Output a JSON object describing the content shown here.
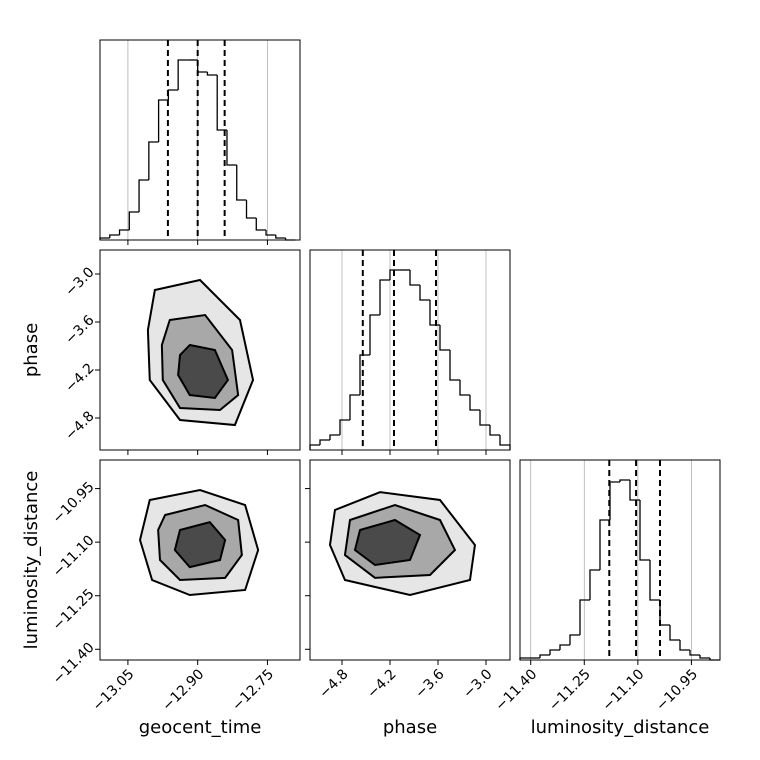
{
  "chart_data": {
    "type": "corner",
    "parameters": [
      {
        "name": "geocent_time",
        "lim": [
          -13.11,
          -12.68
        ],
        "ticks": [
          {
            "value": -13.05,
            "label": "−13.05"
          },
          {
            "value": -12.9,
            "label": "−12.90"
          },
          {
            "value": -12.75,
            "label": "−12.75"
          }
        ],
        "hist": {
          "bins": [
            -13.11,
            -13.089,
            -13.068,
            -13.047,
            -13.026,
            -13.005,
            -12.984,
            -12.963,
            -12.942,
            -12.921,
            -12.9,
            -12.879,
            -12.858,
            -12.837,
            -12.816,
            -12.795,
            -12.774,
            -12.753,
            -12.732,
            -12.711,
            -12.69
          ],
          "values": [
            2,
            5,
            10,
            28,
            60,
            98,
            140,
            150,
            180,
            180,
            168,
            165,
            110,
            75,
            40,
            22,
            10,
            5,
            2,
            0
          ],
          "ylim": [
            0,
            200
          ],
          "quantiles": [
            -12.964,
            -12.9,
            -12.842
          ]
        }
      },
      {
        "name": "phase",
        "lim": [
          -5.2,
          -2.7
        ],
        "ticks": [
          {
            "value": -4.8,
            "label": "−4.8"
          },
          {
            "value": -4.2,
            "label": "−4.2"
          },
          {
            "value": -3.6,
            "label": "−3.6"
          },
          {
            "value": -3.0,
            "label": "−3.0"
          }
        ],
        "hist": {
          "bins": [
            -5.2,
            -5.075,
            -4.95,
            -4.825,
            -4.7,
            -4.575,
            -4.45,
            -4.325,
            -4.2,
            -4.075,
            -3.95,
            -3.825,
            -3.7,
            -3.575,
            -3.45,
            -3.325,
            -3.2,
            -3.075,
            -2.95,
            -2.825,
            -2.7
          ],
          "values": [
            5,
            10,
            15,
            30,
            55,
            95,
            135,
            170,
            180,
            180,
            165,
            150,
            125,
            100,
            70,
            55,
            40,
            25,
            15,
            5
          ],
          "ylim": [
            0,
            200
          ],
          "quantiles": [
            -4.54,
            -4.15,
            -3.625
          ]
        }
      },
      {
        "name": "luminosity_distance",
        "lim": [
          -11.43,
          -10.87
        ],
        "ticks": [
          {
            "value": -11.4,
            "label": "−11.40"
          },
          {
            "value": -11.25,
            "label": "−11.25"
          },
          {
            "value": -11.1,
            "label": "−11.10"
          },
          {
            "value": -10.95,
            "label": "−10.95"
          }
        ],
        "hist": {
          "bins": [
            -11.43,
            -11.402,
            -11.374,
            -11.346,
            -11.318,
            -11.29,
            -11.262,
            -11.234,
            -11.206,
            -11.178,
            -11.15,
            -11.122,
            -11.094,
            -11.066,
            -11.038,
            -11.01,
            -10.982,
            -10.954,
            -10.926,
            -10.898,
            -10.87
          ],
          "values": [
            2,
            2,
            5,
            10,
            15,
            25,
            60,
            90,
            140,
            178,
            180,
            160,
            100,
            60,
            35,
            20,
            10,
            5,
            2,
            0
          ],
          "ylim": [
            0,
            200
          ],
          "quantiles": [
            -11.18,
            -11.105,
            -11.038
          ]
        }
      }
    ],
    "pairs": [
      {
        "contours": [
          {
            "x": [
              -12.992,
              -12.895,
              -12.809,
              -12.781,
              -12.82,
              -12.938,
              -13.003,
              -13.007
            ],
            "y": [
              -3.2,
              -3.075,
              -3.575,
              -4.325,
              -4.888,
              -4.825,
              -4.325,
              -3.7
            ]
          },
          {
            "x": [
              -12.96,
              -12.884,
              -12.826,
              -12.813,
              -12.852,
              -12.938,
              -12.975,
              -12.977
            ],
            "y": [
              -3.575,
              -3.513,
              -3.95,
              -4.513,
              -4.7,
              -4.675,
              -4.325,
              -3.888
            ]
          },
          {
            "x": [
              -12.917,
              -12.863,
              -12.835,
              -12.863,
              -12.917,
              -12.942,
              -12.938
            ],
            "y": [
              -3.888,
              -3.95,
              -4.325,
              -4.55,
              -4.513,
              -4.263,
              -4.013
            ]
          }
        ]
      },
      {
        "contours": [
          {
            "x": [
              -13.003,
              -12.895,
              -12.798,
              -12.77,
              -12.798,
              -12.917,
              -12.998,
              -13.024
            ],
            "y": [
              -10.982,
              -10.954,
              -10.996,
              -11.122,
              -11.234,
              -11.248,
              -11.206,
              -11.094
            ]
          },
          {
            "x": [
              -12.97,
              -12.884,
              -12.813,
              -12.805,
              -12.841,
              -12.938,
              -12.981,
              -12.985
            ],
            "y": [
              -11.024,
              -10.996,
              -11.038,
              -11.136,
              -11.2,
              -11.206,
              -11.15,
              -11.066
            ]
          },
          {
            "x": [
              -12.938,
              -12.874,
              -12.841,
              -12.852,
              -12.917,
              -12.949
            ],
            "y": [
              -11.066,
              -11.044,
              -11.094,
              -11.15,
              -11.17,
              -11.122
            ]
          }
        ]
      },
      {
        "contours": [
          {
            "x": [
              -4.888,
              -4.325,
              -3.575,
              -3.138,
              -3.2,
              -3.95,
              -4.763,
              -4.95
            ],
            "y": [
              -11.01,
              -10.96,
              -10.982,
              -11.108,
              -11.206,
              -11.248,
              -11.206,
              -11.108
            ]
          },
          {
            "x": [
              -4.7,
              -4.138,
              -3.575,
              -3.388,
              -3.7,
              -4.388,
              -4.763
            ],
            "y": [
              -11.038,
              -10.996,
              -11.038,
              -11.122,
              -11.192,
              -11.2,
              -11.136
            ]
          },
          {
            "x": [
              -4.575,
              -4.138,
              -3.825,
              -3.95,
              -4.388,
              -4.638
            ],
            "y": [
              -11.066,
              -11.038,
              -11.08,
              -11.15,
              -11.164,
              -11.122
            ]
          }
        ]
      }
    ],
    "contour_fills": [
      "#e6e6e6",
      "#a8a8a8",
      "#4a4a4a"
    ],
    "line_color": "#000000",
    "grid": true
  }
}
